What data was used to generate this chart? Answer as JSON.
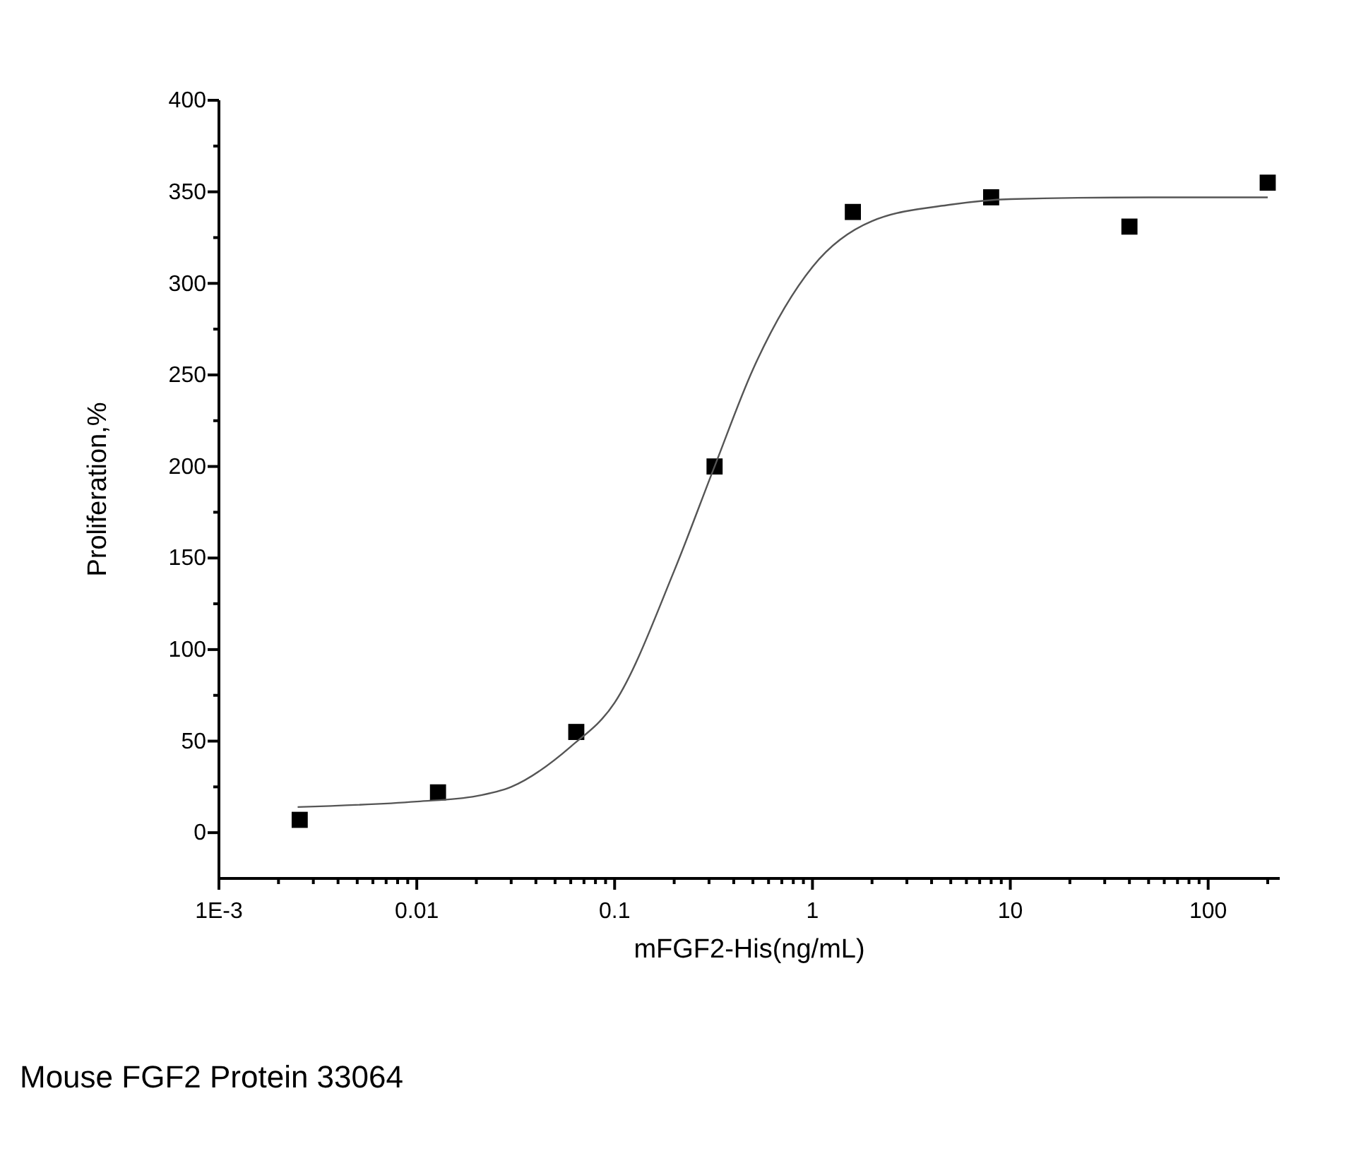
{
  "chart_data": {
    "type": "scatter",
    "xlabel": "mFGF2-His(ng/mL)",
    "ylabel": "Proliferation,%",
    "log": "x",
    "xlim": [
      0.001,
      230
    ],
    "ylim": [
      -25,
      400
    ],
    "xticks": [
      {
        "value": 0.001,
        "label": "1E-3"
      },
      {
        "value": 0.002,
        "label": null
      },
      {
        "value": 0.003,
        "label": null
      },
      {
        "value": 0.004,
        "label": null
      },
      {
        "value": 0.005,
        "label": null
      },
      {
        "value": 0.006,
        "label": null
      },
      {
        "value": 0.007,
        "label": null
      },
      {
        "value": 0.008,
        "label": null
      },
      {
        "value": 0.009,
        "label": null
      },
      {
        "value": 0.01,
        "label": "0.01"
      },
      {
        "value": 0.02,
        "label": null
      },
      {
        "value": 0.03,
        "label": null
      },
      {
        "value": 0.04,
        "label": null
      },
      {
        "value": 0.05,
        "label": null
      },
      {
        "value": 0.06,
        "label": null
      },
      {
        "value": 0.07,
        "label": null
      },
      {
        "value": 0.08,
        "label": null
      },
      {
        "value": 0.09,
        "label": null
      },
      {
        "value": 0.1,
        "label": "0.1"
      },
      {
        "value": 0.2,
        "label": null
      },
      {
        "value": 0.3,
        "label": null
      },
      {
        "value": 0.4,
        "label": null
      },
      {
        "value": 0.5,
        "label": null
      },
      {
        "value": 0.6,
        "label": null
      },
      {
        "value": 0.7,
        "label": null
      },
      {
        "value": 0.8,
        "label": null
      },
      {
        "value": 0.9,
        "label": null
      },
      1,
      {
        "value": 2,
        "label": null
      },
      {
        "value": 3,
        "label": null
      },
      {
        "value": 4,
        "label": null
      },
      {
        "value": 5,
        "label": null
      },
      {
        "value": 6,
        "label": null
      },
      {
        "value": 7,
        "label": null
      },
      {
        "value": 8,
        "label": null
      },
      {
        "value": 9,
        "label": null
      },
      10,
      {
        "value": 20,
        "label": null
      },
      {
        "value": 30,
        "label": null
      },
      {
        "value": 40,
        "label": null
      },
      {
        "value": 50,
        "label": null
      },
      {
        "value": 60,
        "label": null
      },
      {
        "value": 70,
        "label": null
      },
      {
        "value": 80,
        "label": null
      },
      {
        "value": 90,
        "label": null
      },
      100,
      {
        "value": 200,
        "label": null
      }
    ],
    "yticks": [
      0,
      {
        "value": 25,
        "label": null
      },
      50,
      {
        "value": 75,
        "label": null
      },
      100,
      {
        "value": 125,
        "label": null
      },
      150,
      {
        "value": 175,
        "label": null
      },
      200,
      {
        "value": 225,
        "label": null
      },
      250,
      {
        "value": 275,
        "label": null
      },
      300,
      {
        "value": 325,
        "label": null
      },
      350,
      {
        "value": 375,
        "label": null
      },
      400
    ],
    "grid": false,
    "series": [
      {
        "marker": "square",
        "color": "#000000",
        "x": [
          0.00256,
          0.0128,
          0.064,
          0.32,
          1.6,
          8,
          40,
          200
        ],
        "values": [
          7,
          22,
          55,
          200,
          339,
          347,
          331,
          355
        ]
      },
      {
        "type": "line",
        "marker": "none",
        "line_style": "solid",
        "color": "#555555",
        "x": [
          0.0025,
          0.01,
          0.02,
          0.03,
          0.06,
          0.1,
          0.2,
          0.32,
          0.5,
          1,
          2,
          5,
          10,
          50,
          200
        ],
        "values": [
          14,
          17,
          20,
          25,
          47,
          71,
          143,
          200,
          253,
          309,
          334,
          343,
          346,
          347,
          347
        ]
      }
    ],
    "annotations": [
      "Mouse FGF2 Protein 33064"
    ]
  }
}
